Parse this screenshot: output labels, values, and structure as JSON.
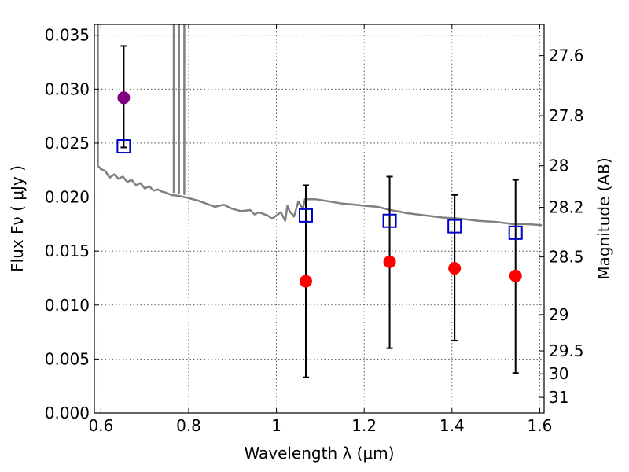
{
  "chart_data": {
    "type": "scatter",
    "xlabel": "Wavelength  λ (μm)",
    "ylabel": "Flux  Fν  ( μJy )",
    "ylabel_right": "Magnitude (AB)",
    "xlim": [
      0.585,
      1.61
    ],
    "ylim": [
      0.0,
      0.036
    ],
    "grid": true,
    "x_ticks": [
      0.6,
      0.8,
      1.0,
      1.2,
      1.4,
      1.6
    ],
    "x_tick_labels": [
      "0.6",
      "0.8",
      "1",
      "1.2",
      "1.4",
      "1.6"
    ],
    "y_ticks": [
      0.0,
      0.005,
      0.01,
      0.015,
      0.02,
      0.025,
      0.03,
      0.035
    ],
    "y_tick_labels": [
      "0.000",
      "0.005",
      "0.010",
      "0.015",
      "0.020",
      "0.025",
      "0.030",
      "0.035"
    ],
    "magnitude_ticks": [
      {
        "mag": 27.6,
        "label": "27.6"
      },
      {
        "mag": 27.8,
        "label": "27.8"
      },
      {
        "mag": 28.0,
        "label": "28"
      },
      {
        "mag": 28.2,
        "label": "28.2"
      },
      {
        "mag": 28.5,
        "label": "28.5"
      },
      {
        "mag": 29.0,
        "label": "29"
      },
      {
        "mag": 29.5,
        "label": "29.5"
      },
      {
        "mag": 30.0,
        "label": "30"
      },
      {
        "mag": 31.0,
        "label": "31"
      }
    ],
    "series": [
      {
        "kind": "line",
        "color": "#808080",
        "points": [
          [
            0.593,
            0.0229
          ],
          [
            0.6,
            0.0226
          ],
          [
            0.61,
            0.0224
          ],
          [
            0.62,
            0.0218
          ],
          [
            0.63,
            0.0221
          ],
          [
            0.64,
            0.0217
          ],
          [
            0.65,
            0.0219
          ],
          [
            0.66,
            0.0214
          ],
          [
            0.67,
            0.0216
          ],
          [
            0.68,
            0.0211
          ],
          [
            0.69,
            0.0213
          ],
          [
            0.7,
            0.0208
          ],
          [
            0.71,
            0.021
          ],
          [
            0.72,
            0.0206
          ],
          [
            0.73,
            0.0207
          ],
          [
            0.74,
            0.0205
          ],
          [
            0.75,
            0.0204
          ],
          [
            0.76,
            0.0202
          ],
          [
            0.78,
            0.0201
          ],
          [
            0.8,
            0.0199
          ],
          [
            0.82,
            0.0197
          ],
          [
            0.84,
            0.0194
          ],
          [
            0.86,
            0.0191
          ],
          [
            0.88,
            0.0193
          ],
          [
            0.9,
            0.0189
          ],
          [
            0.92,
            0.0187
          ],
          [
            0.94,
            0.0188
          ],
          [
            0.95,
            0.0184
          ],
          [
            0.96,
            0.0186
          ],
          [
            0.98,
            0.0183
          ],
          [
            0.99,
            0.018
          ],
          [
            1.0,
            0.0183
          ],
          [
            1.01,
            0.0186
          ],
          [
            1.02,
            0.0178
          ],
          [
            1.025,
            0.0192
          ],
          [
            1.03,
            0.0187
          ],
          [
            1.04,
            0.0182
          ],
          [
            1.05,
            0.0196
          ],
          [
            1.06,
            0.0189
          ],
          [
            1.065,
            0.0198
          ],
          [
            1.09,
            0.0198
          ],
          [
            1.12,
            0.0196
          ],
          [
            1.15,
            0.0194
          ],
          [
            1.18,
            0.0193
          ],
          [
            1.2,
            0.0192
          ],
          [
            1.23,
            0.0191
          ],
          [
            1.26,
            0.0188
          ],
          [
            1.3,
            0.0185
          ],
          [
            1.34,
            0.0183
          ],
          [
            1.38,
            0.0181
          ],
          [
            1.42,
            0.018
          ],
          [
            1.46,
            0.0178
          ],
          [
            1.5,
            0.0177
          ],
          [
            1.54,
            0.0175
          ],
          [
            1.57,
            0.0175
          ],
          [
            1.605,
            0.0174
          ]
        ]
      },
      {
        "kind": "emission_lines",
        "color": "#808080",
        "lines": [
          {
            "x": 0.593,
            "from": 0.0229,
            "to": 0.036
          },
          {
            "x": 0.766,
            "from": 0.0204,
            "to": 0.036
          },
          {
            "x": 0.778,
            "from": 0.0203,
            "to": 0.036
          },
          {
            "x": 0.79,
            "from": 0.0202,
            "to": 0.036
          }
        ]
      },
      {
        "kind": "circles",
        "color": "#800080",
        "points": [
          {
            "x": 0.652,
            "y": 0.0292
          }
        ]
      },
      {
        "kind": "open_squares",
        "color": "#0000cc",
        "points": [
          {
            "x": 0.652,
            "y": 0.0247
          },
          {
            "x": 1.067,
            "y": 0.0183
          },
          {
            "x": 1.258,
            "y": 0.0178
          },
          {
            "x": 1.406,
            "y": 0.0173
          },
          {
            "x": 1.545,
            "y": 0.0167
          }
        ]
      },
      {
        "kind": "circles",
        "color": "#ff0000",
        "points": [
          {
            "x": 1.067,
            "y": 0.0122
          },
          {
            "x": 1.258,
            "y": 0.014
          },
          {
            "x": 1.406,
            "y": 0.0134
          },
          {
            "x": 1.545,
            "y": 0.0127
          }
        ]
      },
      {
        "kind": "error_bars",
        "color": "#000000",
        "points": [
          {
            "x": 0.652,
            "low": 0.0246,
            "high": 0.034
          },
          {
            "x": 1.067,
            "low": 0.0033,
            "high": 0.0211
          },
          {
            "x": 1.258,
            "low": 0.006,
            "high": 0.0219
          },
          {
            "x": 1.406,
            "low": 0.0067,
            "high": 0.0202
          },
          {
            "x": 1.545,
            "low": 0.0037,
            "high": 0.0216
          }
        ]
      }
    ]
  }
}
